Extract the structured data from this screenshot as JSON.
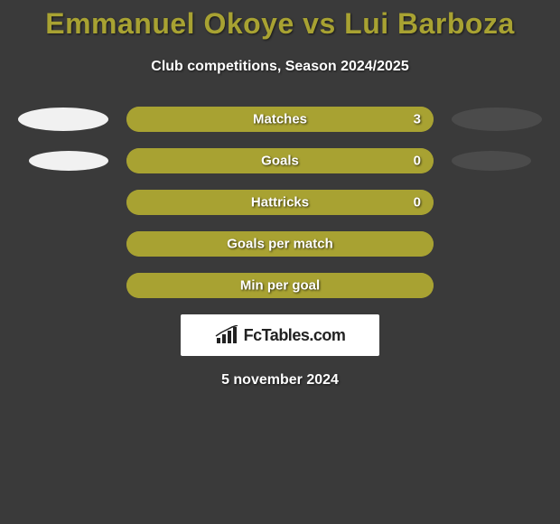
{
  "title": "Emmanuel Okoye vs Lui Barboza",
  "subtitle": "Club competitions, Season 2024/2025",
  "date": "5 november 2024",
  "logo": {
    "text": "FcTables.com",
    "box_bg": "#ffffff",
    "text_color": "#222222"
  },
  "colors": {
    "background": "#3a3a3a",
    "title_color": "#a8a232",
    "ellipse_left": "#f1f1f1",
    "ellipse_right": "#4b4b4b"
  },
  "rows": [
    {
      "label": "Matches",
      "value": "3",
      "show_value": true,
      "fill_pct": 100,
      "outer_bg": "#a8a232",
      "fill_bg": "#a8a232",
      "show_ellipses": true
    },
    {
      "label": "Goals",
      "value": "0",
      "show_value": true,
      "fill_pct": 100,
      "outer_bg": "#a8a232",
      "fill_bg": "#a8a232",
      "show_ellipses": true
    },
    {
      "label": "Hattricks",
      "value": "0",
      "show_value": true,
      "fill_pct": 100,
      "outer_bg": "#a8a232",
      "fill_bg": "#a8a232",
      "show_ellipses": false
    },
    {
      "label": "Goals per match",
      "value": "",
      "show_value": false,
      "fill_pct": 100,
      "outer_bg": "#a8a232",
      "fill_bg": "#a8a232",
      "show_ellipses": false
    },
    {
      "label": "Min per goal",
      "value": "",
      "show_value": false,
      "fill_pct": 100,
      "outer_bg": "#a8a232",
      "fill_bg": "#a8a232",
      "show_ellipses": false
    }
  ]
}
